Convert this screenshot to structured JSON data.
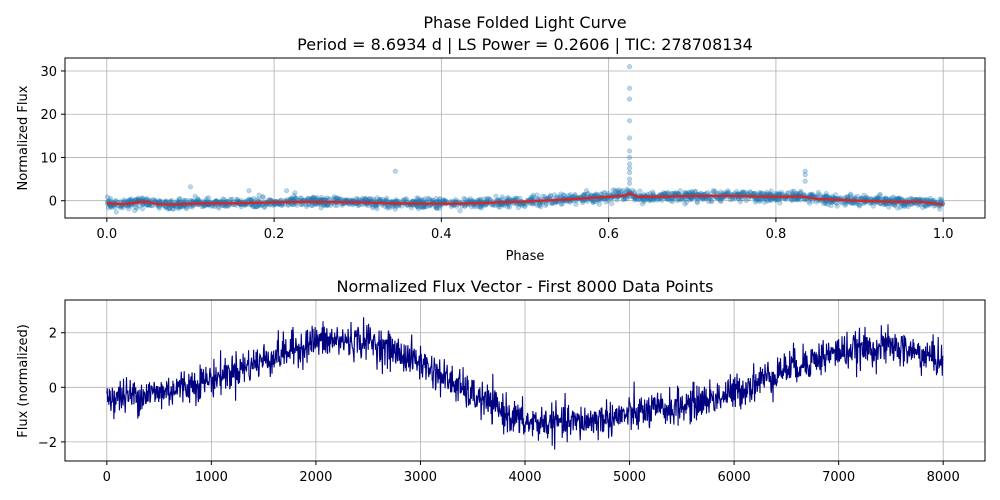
{
  "chart_data": [
    {
      "type": "scatter",
      "title": "Phase Folded Light Curve",
      "subtitle": "Period = 8.6934 d | LS Power = 0.2606 | TIC: 278708134",
      "xlabel": "Phase",
      "ylabel": "Normalized Flux",
      "xlim": [
        -0.05,
        1.05
      ],
      "ylim": [
        -4,
        33
      ],
      "xticks": [
        0.0,
        0.2,
        0.4,
        0.6,
        0.8,
        1.0
      ],
      "xtick_labels": [
        "0.0",
        "0.2",
        "0.4",
        "0.6",
        "0.8",
        "1.0"
      ],
      "yticks": [
        0,
        10,
        20,
        30
      ],
      "ytick_labels": [
        "0",
        "10",
        "20",
        "30"
      ],
      "grid": true,
      "colors": {
        "scatter": "#1f77b4",
        "trend": "#d62728"
      },
      "binned_trend": {
        "x": [
          0.0,
          0.02,
          0.04,
          0.05,
          0.06,
          0.08,
          0.1,
          0.12,
          0.15,
          0.2,
          0.22,
          0.25,
          0.3,
          0.34,
          0.38,
          0.4,
          0.42,
          0.45,
          0.5,
          0.55,
          0.6,
          0.62,
          0.625,
          0.635,
          0.65,
          0.7,
          0.75,
          0.8,
          0.83,
          0.85,
          0.9,
          0.95,
          0.97,
          1.0
        ],
        "y": [
          -0.6,
          -0.8,
          -0.3,
          -0.3,
          -0.8,
          -0.9,
          -0.7,
          -0.6,
          -0.6,
          -0.4,
          -0.3,
          -0.3,
          -0.4,
          -0.6,
          -0.7,
          -0.7,
          -0.7,
          -0.5,
          -0.2,
          0.3,
          0.9,
          1.2,
          1.7,
          0.9,
          0.9,
          1.1,
          1.1,
          0.9,
          1.0,
          0.4,
          0.0,
          -0.3,
          -0.2,
          -0.9
        ]
      },
      "outliers": {
        "x": [
          0.625,
          0.625,
          0.625,
          0.625,
          0.625,
          0.625,
          0.625,
          0.625,
          0.625,
          0.625,
          0.625,
          0.625,
          0.835,
          0.835,
          0.835,
          0.345,
          0.1,
          0.17,
          0.215,
          0.225
        ],
        "y": [
          31,
          26,
          23.5,
          18.5,
          14.5,
          11.5,
          10,
          8.5,
          7.5,
          6.5,
          5,
          4,
          6.8,
          6,
          4.5,
          6.8,
          3.2,
          2.3,
          2.3,
          1.8
        ]
      }
    },
    {
      "type": "line",
      "title": "Normalized Flux Vector - First 8000 Data Points",
      "xlabel": "",
      "ylabel": "Flux (normalized)",
      "xlim": [
        -400,
        8400
      ],
      "ylim": [
        -2.7,
        3.2
      ],
      "xticks": [
        0,
        1000,
        2000,
        3000,
        4000,
        5000,
        6000,
        7000,
        8000
      ],
      "xtick_labels": [
        "0",
        "1000",
        "2000",
        "3000",
        "4000",
        "5000",
        "6000",
        "7000",
        "8000"
      ],
      "yticks": [
        -2,
        0,
        2
      ],
      "ytick_labels": [
        "−2",
        "0",
        "2"
      ],
      "grid": true,
      "colors": {
        "line": "#000080"
      },
      "n_points": 8000,
      "envelope": {
        "x": [
          0,
          500,
          1000,
          1500,
          2000,
          2500,
          3000,
          3500,
          4000,
          4500,
          5000,
          5500,
          6000,
          6500,
          7000,
          7500,
          8000
        ],
        "y": [
          -0.4,
          -0.2,
          0.3,
          1.0,
          1.7,
          1.7,
          0.9,
          -0.3,
          -1.3,
          -1.3,
          -1.0,
          -0.7,
          -0.2,
          0.7,
          1.3,
          1.5,
          1.0
        ]
      }
    }
  ]
}
